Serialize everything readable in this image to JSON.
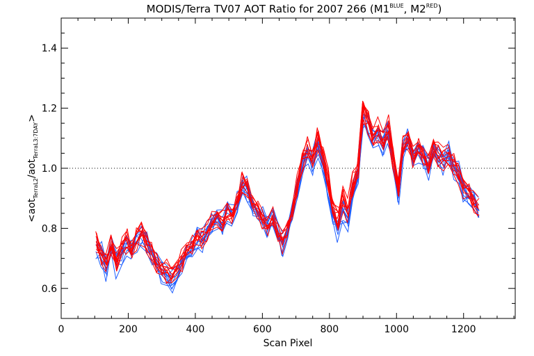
{
  "chart_data": {
    "type": "line",
    "title": {
      "main": "MODIS/Terra TV07 AOT Ratio for 2007 266 (M1",
      "sup1": "BLUE",
      "mid": ", M2",
      "sup2": "RED",
      "end": ")"
    },
    "xlabel": "Scan Pixel",
    "ylabel": {
      "p1": "<aot",
      "s1": "TerraL2",
      "p2": "/aot",
      "s2": "TerraL3:7DAY",
      "p3": ">"
    },
    "xlim": [
      0,
      1354
    ],
    "ylim": [
      0.5,
      1.5
    ],
    "x_ticks": [
      "0",
      "200",
      "400",
      "600",
      "800",
      "1000",
      "1200"
    ],
    "y_ticks": [
      "0.6",
      "0.8",
      "1.0",
      "1.2",
      "1.4"
    ],
    "reference_line": 1.0,
    "series": [
      {
        "color": "#1f5fff",
        "n_lines": 10,
        "mean": [
          [
            105,
            0.74
          ],
          [
            120,
            0.72
          ],
          [
            135,
            0.67
          ],
          [
            150,
            0.73
          ],
          [
            165,
            0.68
          ],
          [
            180,
            0.72
          ],
          [
            195,
            0.75
          ],
          [
            210,
            0.72
          ],
          [
            225,
            0.76
          ],
          [
            240,
            0.78
          ],
          [
            255,
            0.76
          ],
          [
            270,
            0.72
          ],
          [
            285,
            0.68
          ],
          [
            300,
            0.66
          ],
          [
            315,
            0.64
          ],
          [
            330,
            0.63
          ],
          [
            345,
            0.65
          ],
          [
            360,
            0.68
          ],
          [
            375,
            0.71
          ],
          [
            390,
            0.74
          ],
          [
            405,
            0.77
          ],
          [
            420,
            0.76
          ],
          [
            435,
            0.78
          ],
          [
            450,
            0.82
          ],
          [
            465,
            0.84
          ],
          [
            480,
            0.82
          ],
          [
            495,
            0.86
          ],
          [
            510,
            0.84
          ],
          [
            525,
            0.89
          ],
          [
            540,
            0.95
          ],
          [
            555,
            0.93
          ],
          [
            570,
            0.88
          ],
          [
            585,
            0.86
          ],
          [
            600,
            0.84
          ],
          [
            615,
            0.81
          ],
          [
            630,
            0.83
          ],
          [
            645,
            0.79
          ],
          [
            660,
            0.74
          ],
          [
            675,
            0.79
          ],
          [
            690,
            0.86
          ],
          [
            705,
            0.93
          ],
          [
            720,
            1.02
          ],
          [
            735,
            1.06
          ],
          [
            750,
            1.02
          ],
          [
            765,
            1.08
          ],
          [
            780,
            1.03
          ],
          [
            795,
            0.94
          ],
          [
            810,
            0.84
          ],
          [
            825,
            0.8
          ],
          [
            840,
            0.86
          ],
          [
            855,
            0.83
          ],
          [
            870,
            0.92
          ],
          [
            885,
            0.97
          ],
          [
            900,
            1.18
          ],
          [
            915,
            1.15
          ],
          [
            930,
            1.1
          ],
          [
            945,
            1.12
          ],
          [
            960,
            1.08
          ],
          [
            975,
            1.13
          ],
          [
            990,
            1.02
          ],
          [
            1005,
            0.91
          ],
          [
            1020,
            1.07
          ],
          [
            1035,
            1.09
          ],
          [
            1050,
            1.03
          ],
          [
            1065,
            1.06
          ],
          [
            1080,
            1.04
          ],
          [
            1095,
            1.0
          ],
          [
            1110,
            1.06
          ],
          [
            1125,
            1.04
          ],
          [
            1140,
            1.02
          ],
          [
            1155,
            1.05
          ],
          [
            1170,
            1.01
          ],
          [
            1185,
            0.98
          ],
          [
            1200,
            0.93
          ],
          [
            1215,
            0.91
          ],
          [
            1230,
            0.89
          ],
          [
            1245,
            0.86
          ]
        ]
      },
      {
        "color": "#ff0000",
        "n_lines": 10,
        "mean": [
          [
            105,
            0.75
          ],
          [
            120,
            0.71
          ],
          [
            135,
            0.68
          ],
          [
            150,
            0.74
          ],
          [
            165,
            0.7
          ],
          [
            180,
            0.74
          ],
          [
            195,
            0.76
          ],
          [
            210,
            0.73
          ],
          [
            225,
            0.77
          ],
          [
            240,
            0.79
          ],
          [
            255,
            0.76
          ],
          [
            270,
            0.73
          ],
          [
            285,
            0.69
          ],
          [
            300,
            0.67
          ],
          [
            315,
            0.66
          ],
          [
            330,
            0.64
          ],
          [
            345,
            0.66
          ],
          [
            360,
            0.7
          ],
          [
            375,
            0.73
          ],
          [
            390,
            0.75
          ],
          [
            405,
            0.78
          ],
          [
            420,
            0.77
          ],
          [
            435,
            0.79
          ],
          [
            450,
            0.83
          ],
          [
            465,
            0.84
          ],
          [
            480,
            0.83
          ],
          [
            495,
            0.86
          ],
          [
            510,
            0.85
          ],
          [
            525,
            0.9
          ],
          [
            540,
            0.96
          ],
          [
            555,
            0.94
          ],
          [
            570,
            0.89
          ],
          [
            585,
            0.87
          ],
          [
            600,
            0.84
          ],
          [
            615,
            0.82
          ],
          [
            630,
            0.84
          ],
          [
            645,
            0.8
          ],
          [
            660,
            0.76
          ],
          [
            675,
            0.8
          ],
          [
            690,
            0.87
          ],
          [
            705,
            0.95
          ],
          [
            720,
            1.03
          ],
          [
            735,
            1.07
          ],
          [
            750,
            1.04
          ],
          [
            765,
            1.1
          ],
          [
            780,
            1.05
          ],
          [
            795,
            0.97
          ],
          [
            810,
            0.87
          ],
          [
            825,
            0.84
          ],
          [
            840,
            0.9
          ],
          [
            855,
            0.86
          ],
          [
            870,
            0.95
          ],
          [
            885,
            0.99
          ],
          [
            900,
            1.19
          ],
          [
            915,
            1.16
          ],
          [
            930,
            1.11
          ],
          [
            945,
            1.13
          ],
          [
            960,
            1.09
          ],
          [
            975,
            1.14
          ],
          [
            990,
            1.03
          ],
          [
            1005,
            0.92
          ],
          [
            1020,
            1.08
          ],
          [
            1035,
            1.1
          ],
          [
            1050,
            1.04
          ],
          [
            1065,
            1.07
          ],
          [
            1080,
            1.05
          ],
          [
            1095,
            1.01
          ],
          [
            1110,
            1.07
          ],
          [
            1125,
            1.05
          ],
          [
            1140,
            1.03
          ],
          [
            1155,
            1.05
          ],
          [
            1170,
            1.02
          ],
          [
            1185,
            0.99
          ],
          [
            1200,
            0.94
          ],
          [
            1215,
            0.92
          ],
          [
            1230,
            0.89
          ],
          [
            1245,
            0.87
          ]
        ]
      }
    ],
    "grid": false
  }
}
